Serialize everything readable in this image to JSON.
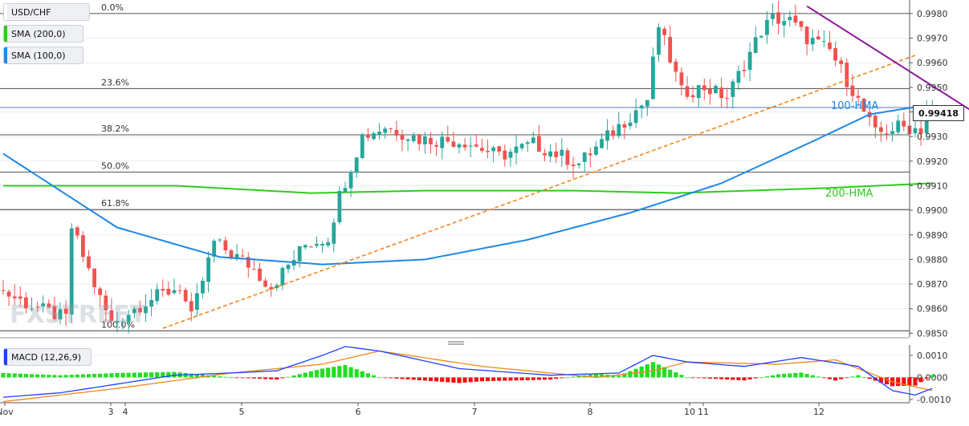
{
  "legend": {
    "pair": "USD/CHF",
    "sma200": "SMA (200,0)",
    "sma100": "SMA (100,0)",
    "macd": "MACD (12,26,9)"
  },
  "colors": {
    "bull": "#26a69a",
    "bear": "#ef5350",
    "hma100": "#1e88e5",
    "hma200": "#2ecc1a",
    "trend_down": "#8e1a9c",
    "trend_up": "#f0871d",
    "macd_line": "#1e40ff",
    "signal_line": "#f0871d",
    "hist_pos": "#22dd22",
    "hist_neg": "#ee1111"
  },
  "watermark": "FXSTREET",
  "current_price": "0.99418",
  "fib_levels": [
    {
      "label": "0.0%",
      "price": 0.998
    },
    {
      "label": "23.6%",
      "price": 0.99495
    },
    {
      "label": "38.2%",
      "price": 0.99307
    },
    {
      "label": "50.0%",
      "price": 0.99155
    },
    {
      "label": "61.8%",
      "price": 0.99003
    },
    {
      "label": "100.0%",
      "price": 0.9851
    }
  ],
  "hma_labels": {
    "hma100": "100-HMA",
    "hma200": "200-HMA"
  },
  "chart_data": {
    "type": "candlestick",
    "y_ticks": [
      "0.9980",
      "0.9970",
      "0.9960",
      "0.9950",
      "0.9940",
      "0.9930",
      "0.9920",
      "0.9910",
      "0.9900",
      "0.9890",
      "0.9880",
      "0.9870",
      "0.9860",
      "0.9850"
    ],
    "ylim": [
      0.98485,
      0.99855
    ],
    "x_labels": [
      "Nov",
      "3",
      "4",
      "5",
      "6",
      "7",
      "8",
      "10",
      "11",
      "12"
    ],
    "hourly_bars_count": 144,
    "candle_anchors": [
      [
        0,
        0.9868
      ],
      [
        6,
        0.9861
      ],
      [
        12,
        0.9856
      ],
      [
        13,
        0.9893
      ],
      [
        18,
        0.9864
      ],
      [
        20,
        0.9854
      ],
      [
        26,
        0.9863
      ],
      [
        32,
        0.9869
      ],
      [
        34,
        0.9856
      ],
      [
        38,
        0.9887
      ],
      [
        44,
        0.9878
      ],
      [
        48,
        0.9869
      ],
      [
        54,
        0.9886
      ],
      [
        58,
        0.9889
      ],
      [
        60,
        0.9906
      ],
      [
        64,
        0.993
      ],
      [
        68,
        0.9934
      ],
      [
        74,
        0.9929
      ],
      [
        82,
        0.9928
      ],
      [
        88,
        0.9922
      ],
      [
        94,
        0.9927
      ],
      [
        102,
        0.9919
      ],
      [
        108,
        0.9932
      ],
      [
        114,
        0.9945
      ],
      [
        116,
        0.9975
      ],
      [
        120,
        0.9948
      ],
      [
        124,
        0.995
      ],
      [
        128,
        0.9946
      ],
      [
        134,
        0.9973
      ],
      [
        136,
        0.9978
      ],
      [
        139,
        0.9977
      ],
      [
        142,
        0.997
      ],
      [
        146,
        0.9965
      ],
      [
        150,
        0.9949
      ],
      [
        154,
        0.9931
      ],
      [
        158,
        0.9934
      ],
      [
        162,
        0.9933
      ],
      [
        163,
        0.9941
      ]
    ],
    "hma100_anchors": [
      [
        0,
        0.9923
      ],
      [
        20,
        0.9893
      ],
      [
        38,
        0.9881
      ],
      [
        56,
        0.9878
      ],
      [
        74,
        0.988
      ],
      [
        92,
        0.9888
      ],
      [
        110,
        0.9899
      ],
      [
        126,
        0.9911
      ],
      [
        142,
        0.9928
      ],
      [
        152,
        0.9939
      ],
      [
        160,
        0.9942
      ],
      [
        163,
        0.9942
      ]
    ],
    "hma200_anchors": [
      [
        0,
        0.991
      ],
      [
        30,
        0.991
      ],
      [
        54,
        0.9907
      ],
      [
        74,
        0.9908
      ],
      [
        100,
        0.9908
      ],
      [
        118,
        0.9907
      ],
      [
        144,
        0.9909
      ],
      [
        163,
        0.9911
      ]
    ],
    "trend_up": {
      "from": [
        28,
        0.9852
      ],
      "to": [
        160,
        0.9963
      ]
    },
    "trend_down": {
      "from": [
        141,
        0.9983
      ],
      "to": [
        177,
        0.993
      ]
    },
    "macd_ticks": [
      "0.0010",
      "0.0000",
      "-0.0010"
    ],
    "macd_ylim": [
      -0.00115,
      0.0014
    ],
    "macd_line_anchors": [
      [
        0,
        -0.0009
      ],
      [
        10,
        -0.0007
      ],
      [
        20,
        -0.0003
      ],
      [
        30,
        0.0001
      ],
      [
        40,
        0.0002
      ],
      [
        48,
        0.0003
      ],
      [
        56,
        0.001
      ],
      [
        60,
        0.0014
      ],
      [
        66,
        0.0012
      ],
      [
        80,
        0.0004
      ],
      [
        96,
        0.0001
      ],
      [
        108,
        0.0002
      ],
      [
        114,
        0.001
      ],
      [
        120,
        0.0007
      ],
      [
        130,
        0.0005
      ],
      [
        140,
        0.0009
      ],
      [
        150,
        0.0005
      ],
      [
        156,
        -0.0006
      ],
      [
        160,
        -0.0008
      ],
      [
        163,
        -0.0005
      ]
    ],
    "signal_line_anchors": [
      [
        0,
        -0.0011
      ],
      [
        20,
        -0.0005
      ],
      [
        40,
        0.0002
      ],
      [
        56,
        0.0006
      ],
      [
        66,
        0.0012
      ],
      [
        84,
        0.0005
      ],
      [
        104,
        0.0
      ],
      [
        114,
        0.0003
      ],
      [
        120,
        0.0007
      ],
      [
        136,
        0.0006
      ],
      [
        146,
        0.0008
      ],
      [
        156,
        -0.0002
      ],
      [
        163,
        -0.0006
      ]
    ]
  }
}
